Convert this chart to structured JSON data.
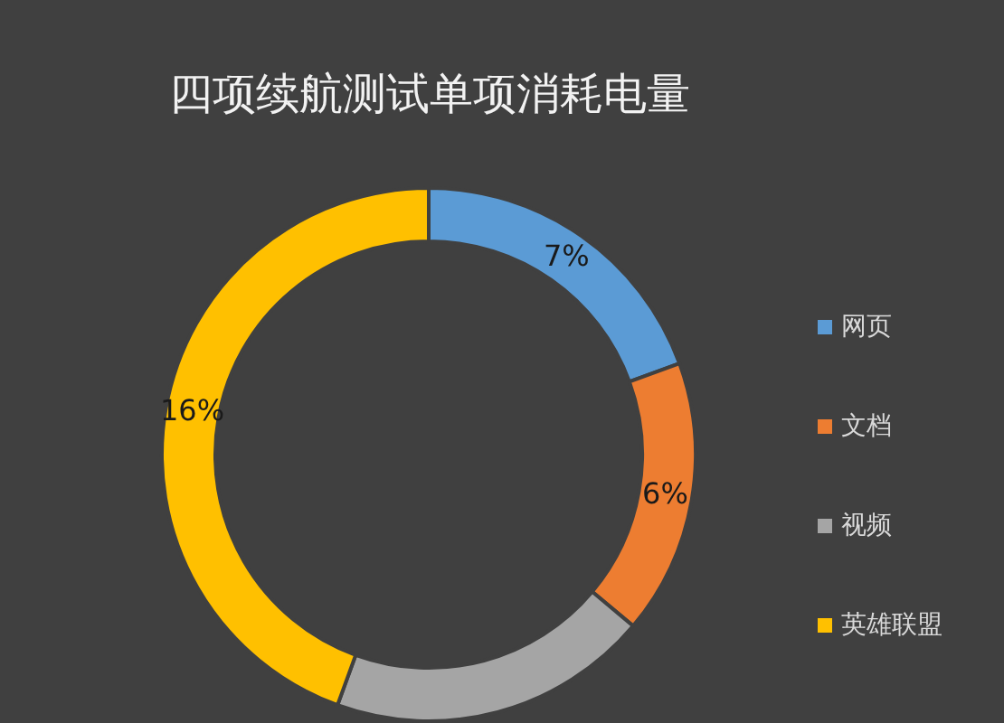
{
  "chart_data": {
    "type": "donut",
    "title": "四项续航测试单项消耗电量",
    "categories": [
      "网页",
      "文档",
      "视频",
      "英雄联盟"
    ],
    "values": [
      7,
      6,
      7,
      16
    ],
    "colors": [
      "#5b9bd5",
      "#ed7d31",
      "#a5a5a5",
      "#ffc000"
    ],
    "value_labels": [
      "7%",
      "6%",
      null,
      "16%"
    ],
    "legend": "right"
  }
}
